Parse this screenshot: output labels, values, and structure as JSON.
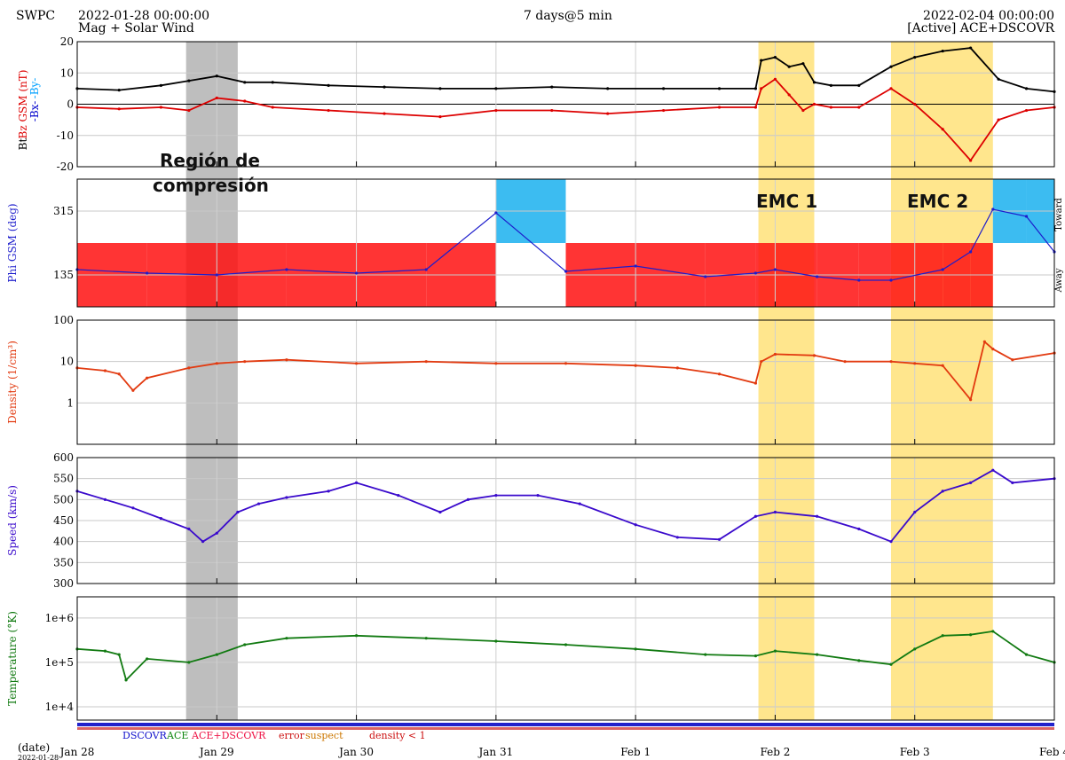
{
  "header": {
    "source": "SWPC",
    "start": "2022-01-28 00:00:00",
    "subtitle": "Mag + Solar Wind",
    "span": "7 days@5 min",
    "end": "2022-02-04 00:00:00",
    "active": "[Active] ACE+DSCOVR"
  },
  "annotations": {
    "compression_line1": "Región  de",
    "compression_line2": "compresión",
    "emc1": "EMC 1",
    "emc2": "EMC 2"
  },
  "legend": {
    "dscovr": "DSCOVR",
    "ace": "ACE",
    "ace_dscovr": "ACE+DSCOVR",
    "error": "error",
    "suspect": "suspect",
    "density": "density < 1"
  },
  "colors": {
    "bt": "#000000",
    "bz": "#dd0000",
    "bx": "#0000cc",
    "by": "#00a0ff",
    "phi_red": "#ff1111",
    "phi_blue": "#1ab0ee",
    "phi_dots": "#1d1dcc",
    "density": "#e23a10",
    "speed": "#3a0acc",
    "temperature": "#117a11",
    "compression_region": "#a8a8a8",
    "emc_region": "#ffe070"
  },
  "chart_data": {
    "type": "line",
    "x_axis": {
      "label": "(date)",
      "first_tick_label": "2022-01-28",
      "ticks": [
        "Jan 28",
        "Jan 29",
        "Jan 30",
        "Jan 31",
        "Feb 1",
        "Feb 2",
        "Feb 3",
        "Feb 4"
      ],
      "range_days": [
        0,
        7
      ]
    },
    "highlights": [
      {
        "label": "Región de compresión",
        "start_day": 0.78,
        "end_day": 1.15
      },
      {
        "label": "EMC 1",
        "start_day": 4.88,
        "end_day": 5.28
      },
      {
        "label": "EMC 2",
        "start_day": 5.83,
        "end_day": 6.56
      }
    ],
    "panels": [
      {
        "id": "mag",
        "ylabel_parts": [
          "Bt",
          "Bz GSM (nT)",
          "-Bx-",
          "-By-"
        ],
        "ylim": [
          -20,
          20
        ],
        "yticks": [
          20,
          10,
          0,
          -10,
          -20
        ],
        "scale": "linear",
        "series": [
          {
            "name": "Bt",
            "x": [
              0,
              0.3,
              0.6,
              0.8,
              1.0,
              1.2,
              1.4,
              1.8,
              2.2,
              2.6,
              3.0,
              3.4,
              3.8,
              4.2,
              4.6,
              4.86,
              4.9,
              5.0,
              5.1,
              5.2,
              5.28,
              5.4,
              5.6,
              5.83,
              6.0,
              6.2,
              6.4,
              6.6,
              6.8,
              7.0
            ],
            "y": [
              5,
              4.5,
              6,
              7.5,
              9,
              7,
              7,
              6,
              5.5,
              5,
              5,
              5.5,
              5,
              5,
              5,
              5,
              14,
              15,
              12,
              13,
              7,
              6,
              6,
              12,
              15,
              17,
              18,
              8,
              5,
              4
            ]
          },
          {
            "name": "Bz GSM",
            "x": [
              0,
              0.3,
              0.6,
              0.8,
              1.0,
              1.2,
              1.4,
              1.8,
              2.2,
              2.6,
              3.0,
              3.4,
              3.8,
              4.2,
              4.6,
              4.86,
              4.9,
              5.0,
              5.1,
              5.2,
              5.28,
              5.4,
              5.6,
              5.83,
              6.0,
              6.2,
              6.4,
              6.6,
              6.8,
              7.0
            ],
            "y": [
              -1,
              -1.5,
              -1,
              -2,
              2,
              1,
              -1,
              -2,
              -3,
              -4,
              -2,
              -2,
              -3,
              -2,
              -1,
              -1,
              5,
              8,
              3,
              -2,
              0,
              -1,
              -1,
              5,
              0,
              -8,
              -18,
              -5,
              -2,
              -1
            ]
          }
        ]
      },
      {
        "id": "phi",
        "ylabel_parts": [
          "Phi GSM (deg)"
        ],
        "right_labels": [
          "Toward",
          "Away"
        ],
        "ylim": [
          45,
          405
        ],
        "yticks": [
          315,
          135
        ],
        "scale": "linear",
        "series": [
          {
            "name": "Phi GSM",
            "x": [
              0,
              0.5,
              1.0,
              1.5,
              2.0,
              2.5,
              3.0,
              3.5,
              4.0,
              4.5,
              4.86,
              5.0,
              5.3,
              5.6,
              5.83,
              6.2,
              6.4,
              6.56,
              6.8,
              7.0
            ],
            "y": [
              150,
              140,
              135,
              150,
              140,
              150,
              310,
              145,
              160,
              130,
              140,
              150,
              130,
              120,
              120,
              150,
              200,
              320,
              300,
              200
            ]
          }
        ]
      },
      {
        "id": "density",
        "ylabel_parts": [
          "Density (1/cm³)"
        ],
        "ylim": [
          0.1,
          100
        ],
        "yticks": [
          "100",
          "10",
          "1"
        ],
        "scale": "log",
        "series": [
          {
            "name": "Density",
            "x": [
              0,
              0.2,
              0.3,
              0.4,
              0.5,
              0.8,
              1.0,
              1.2,
              1.5,
              2.0,
              2.5,
              3.0,
              3.5,
              4.0,
              4.3,
              4.6,
              4.86,
              4.9,
              5.0,
              5.28,
              5.5,
              5.83,
              6.0,
              6.2,
              6.4,
              6.5,
              6.56,
              6.7,
              7.0
            ],
            "y": [
              7,
              6,
              5,
              2,
              4,
              7,
              9,
              10,
              11,
              9,
              10,
              9,
              9,
              8,
              7,
              5,
              3,
              10,
              15,
              14,
              10,
              10,
              9,
              8,
              1.2,
              30,
              20,
              11,
              16
            ]
          }
        ]
      },
      {
        "id": "speed",
        "ylabel_parts": [
          "Speed (km/s)"
        ],
        "ylim": [
          300,
          600
        ],
        "yticks": [
          600,
          550,
          500,
          450,
          400,
          350,
          300
        ],
        "scale": "linear",
        "series": [
          {
            "name": "Speed",
            "x": [
              0,
              0.2,
              0.4,
              0.6,
              0.8,
              0.9,
              1.0,
              1.15,
              1.3,
              1.5,
              1.8,
              2.0,
              2.3,
              2.6,
              2.8,
              3.0,
              3.3,
              3.6,
              4.0,
              4.3,
              4.6,
              4.86,
              5.0,
              5.3,
              5.6,
              5.83,
              6.0,
              6.2,
              6.4,
              6.56,
              6.7,
              7.0
            ],
            "y": [
              520,
              500,
              480,
              455,
              430,
              400,
              420,
              470,
              490,
              505,
              520,
              540,
              510,
              470,
              500,
              510,
              510,
              490,
              440,
              410,
              405,
              460,
              470,
              460,
              430,
              400,
              470,
              520,
              540,
              570,
              540,
              550
            ]
          }
        ]
      },
      {
        "id": "temperature",
        "ylabel_parts": [
          "Temperature (°K)"
        ],
        "ylim": [
          5000,
          3000000
        ],
        "yticks": [
          "1e+6",
          "1e+5",
          "1e+4"
        ],
        "scale": "log",
        "series": [
          {
            "name": "Temperature",
            "x": [
              0,
              0.2,
              0.3,
              0.35,
              0.5,
              0.8,
              1.0,
              1.2,
              1.5,
              2.0,
              2.5,
              3.0,
              3.5,
              4.0,
              4.5,
              4.86,
              5.0,
              5.3,
              5.6,
              5.83,
              6.0,
              6.2,
              6.4,
              6.56,
              6.8,
              7.0
            ],
            "y": [
              200000,
              180000,
              150000,
              40000,
              120000,
              100000,
              150000,
              250000,
              350000,
              400000,
              350000,
              300000,
              250000,
              200000,
              150000,
              140000,
              180000,
              150000,
              110000,
              90000,
              200000,
              400000,
              420000,
              500000,
              150000,
              100000
            ]
          }
        ]
      }
    ]
  }
}
